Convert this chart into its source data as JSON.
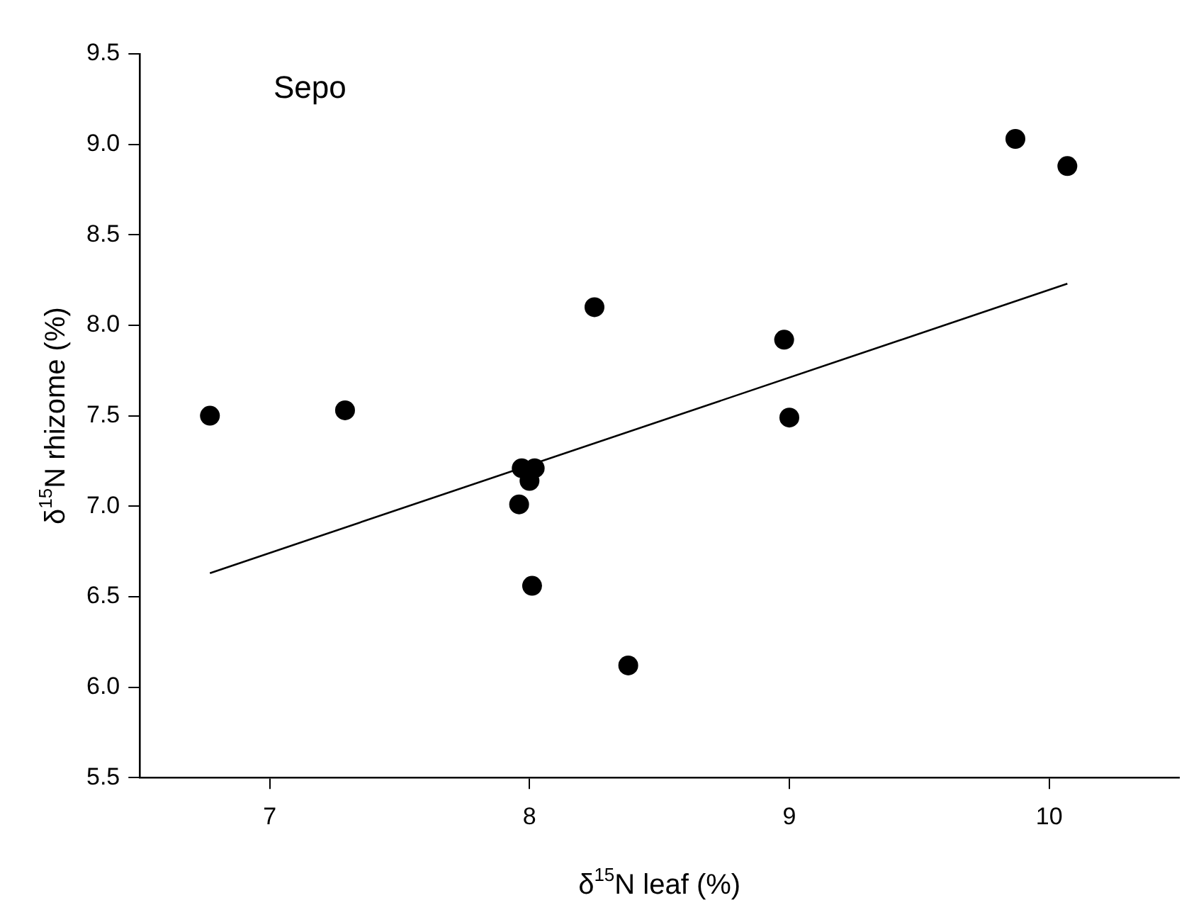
{
  "chart_data": {
    "type": "scatter",
    "xlabel": "δ$^{15}$N leaf (%)",
    "ylabel": "δ$^{15}$N rhizome (%)",
    "annotations": [
      "Sepo"
    ],
    "xlim": [
      6.5,
      10.5
    ],
    "xticks": [
      7,
      8,
      9,
      10
    ],
    "ylim": [
      5.5,
      9.5
    ],
    "yticks": [
      {
        "value": 5.5,
        "label": "5.5"
      },
      {
        "value": 6,
        "label": "6.0"
      },
      {
        "value": 6.5,
        "label": "6.5"
      },
      {
        "value": 7,
        "label": "7.0"
      },
      {
        "value": 7.5,
        "label": "7.5"
      },
      {
        "value": 8,
        "label": "8.0"
      },
      {
        "value": 8.5,
        "label": "8.5"
      },
      {
        "value": 9,
        "label": "9.0"
      },
      {
        "value": 9.5,
        "label": "9.5"
      }
    ],
    "grid": false,
    "legend": false,
    "marker": "circle",
    "series": [
      {
        "type": "scatter",
        "color": "#000000",
        "x": [
          6.77,
          7.29,
          7.97,
          8.02,
          8.0,
          7.96,
          8.01,
          8.25,
          8.38,
          8.98,
          9.0,
          9.87,
          10.07
        ],
        "values": [
          7.5,
          7.53,
          7.21,
          7.21,
          7.14,
          7.01,
          6.56,
          8.1,
          6.12,
          7.92,
          7.49,
          9.03,
          8.88
        ]
      },
      {
        "type": "line",
        "color": "#000000",
        "marker": "none",
        "line_style": "solid",
        "x": [
          6.77,
          10.07
        ],
        "values": [
          6.63,
          8.23
        ]
      }
    ]
  }
}
